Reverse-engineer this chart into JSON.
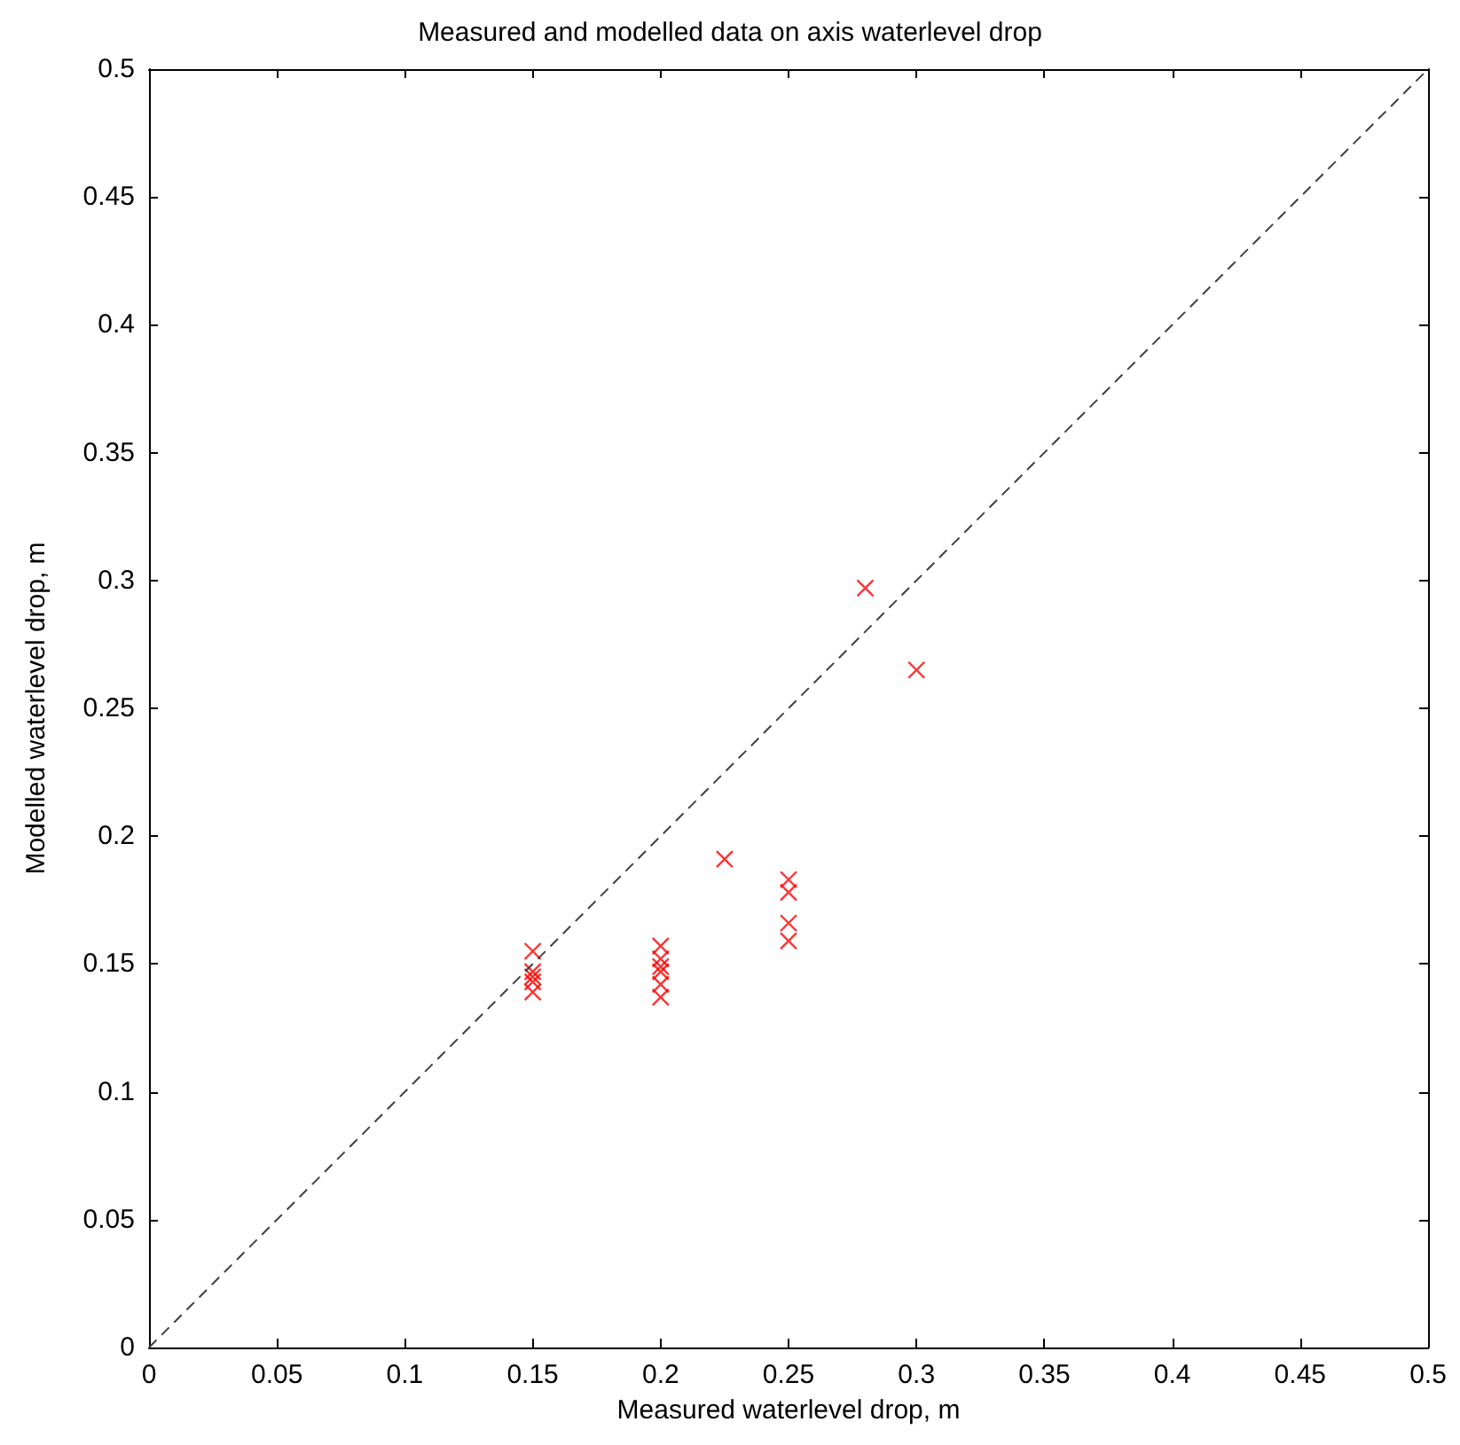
{
  "chart_data": {
    "type": "scatter",
    "title": "Measured and modelled data on axis waterlevel drop",
    "xlabel": "Measured waterlevel drop, m",
    "ylabel": "Modelled waterlevel drop, m",
    "xlim": [
      0,
      0.5
    ],
    "xticks": [
      0,
      0.05,
      0.1,
      0.15,
      0.2,
      0.25,
      0.3,
      0.35,
      0.4,
      0.45,
      0.5
    ],
    "ylim": [
      0,
      0.5
    ],
    "yticks": [
      0,
      0.05,
      0.1,
      0.15,
      0.2,
      0.25,
      0.3,
      0.35,
      0.4,
      0.45,
      0.5
    ],
    "grid": false,
    "series": [
      {
        "color": "#ff0000",
        "marker": "cross",
        "x": [
          0.15,
          0.15,
          0.15,
          0.15,
          0.15,
          0.2,
          0.2,
          0.2,
          0.2,
          0.2,
          0.2,
          0.225,
          0.25,
          0.25,
          0.25,
          0.25,
          0.28,
          0.3
        ],
        "values": [
          0.155,
          0.147,
          0.145,
          0.143,
          0.139,
          0.157,
          0.152,
          0.149,
          0.147,
          0.142,
          0.137,
          0.191,
          0.183,
          0.178,
          0.166,
          0.159,
          0.297,
          0.265
        ]
      },
      {
        "type": "line",
        "color": "#404040",
        "marker": "none",
        "line_style": "dashed",
        "x": [
          0,
          0.5
        ],
        "values": [
          0,
          0.5
        ]
      }
    ]
  }
}
